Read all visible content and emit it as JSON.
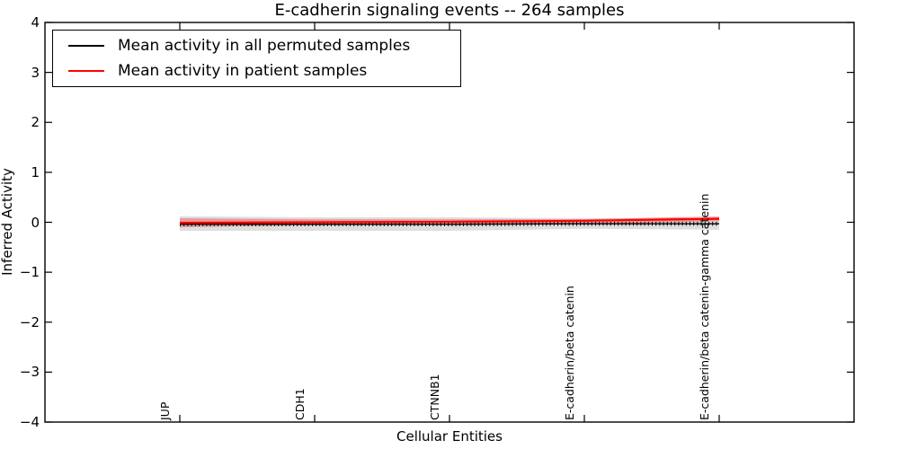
{
  "chart_data": {
    "type": "line",
    "title": "E-cadherin signaling events -- 264 samples",
    "xlabel": "Cellular Entities",
    "ylabel": "Inferred Activity",
    "ylim": [
      -4,
      4
    ],
    "yticks": [
      4,
      3,
      2,
      1,
      0,
      -1,
      -2,
      -3,
      -4
    ],
    "xlim": [
      0,
      6
    ],
    "grid": false,
    "legend_position": "upper left",
    "categories": [
      "JUP",
      "CDH1",
      "CTNNB1",
      "E-cadherin/beta catenin",
      "E-cadherin/beta catenin-gamma catenin"
    ],
    "category_positions": [
      1,
      2,
      3,
      4,
      5
    ],
    "series": [
      {
        "name": "Mean activity in all permuted samples",
        "color": "#000000",
        "line_width": 1.4,
        "marker": "vertical-dash",
        "values": [
          -0.04,
          -0.04,
          -0.04,
          -0.03,
          -0.03
        ],
        "band_high": [
          0.12,
          0.1,
          0.1,
          0.08,
          0.1
        ],
        "band_low": [
          -0.17,
          -0.17,
          -0.17,
          -0.13,
          -0.15
        ],
        "band_color": "rgba(0,0,0,0.13)"
      },
      {
        "name": "Mean activity in patient samples",
        "color": "#ff0000",
        "line_width": 2.2,
        "marker": "none",
        "values": [
          -0.01,
          0.0,
          0.01,
          0.03,
          0.07
        ],
        "band_high": [
          0.08,
          0.06,
          0.06,
          0.06,
          0.12
        ],
        "band_low": [
          -0.1,
          -0.06,
          -0.05,
          -0.04,
          0.02
        ],
        "band_color": "rgba(255,0,0,0.3)"
      }
    ]
  }
}
